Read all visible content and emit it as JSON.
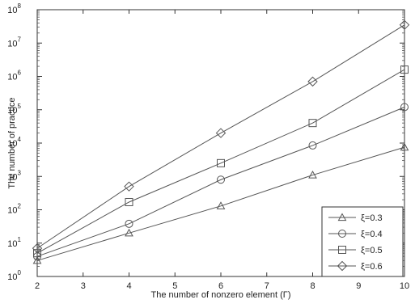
{
  "chart_data": {
    "type": "line",
    "title": "",
    "xlabel": "The number of nonzero element (Γ)",
    "ylabel": "The number of practice",
    "x": [
      2,
      4,
      6,
      8,
      10
    ],
    "xlim": [
      2,
      10
    ],
    "xticks": [
      "2",
      "3",
      "4",
      "5",
      "6",
      "7",
      "8",
      "9",
      "10"
    ],
    "ylim": [
      1,
      100000000
    ],
    "yscale": "log",
    "yticks": [
      {
        "base": "10",
        "exp": "0"
      },
      {
        "base": "10",
        "exp": "1"
      },
      {
        "base": "10",
        "exp": "2"
      },
      {
        "base": "10",
        "exp": "3"
      },
      {
        "base": "10",
        "exp": "4"
      },
      {
        "base": "10",
        "exp": "5"
      },
      {
        "base": "10",
        "exp": "6"
      },
      {
        "base": "10",
        "exp": "7"
      },
      {
        "base": "10",
        "exp": "8"
      }
    ],
    "grid": false,
    "legend_position": "bottom-right",
    "series": [
      {
        "name": "ξ=0.3",
        "marker": "triangle",
        "values": [
          3,
          20,
          130,
          1100,
          7500
        ]
      },
      {
        "name": "ξ=0.4",
        "marker": "circle",
        "values": [
          4,
          38,
          800,
          8500,
          120000
        ]
      },
      {
        "name": "ξ=0.5",
        "marker": "square",
        "values": [
          5,
          170,
          2500,
          40000,
          1600000
        ]
      },
      {
        "name": "ξ=0.6",
        "marker": "diamond",
        "values": [
          7,
          500,
          20000,
          700000,
          35000000
        ]
      }
    ],
    "line_color": "#555555"
  }
}
